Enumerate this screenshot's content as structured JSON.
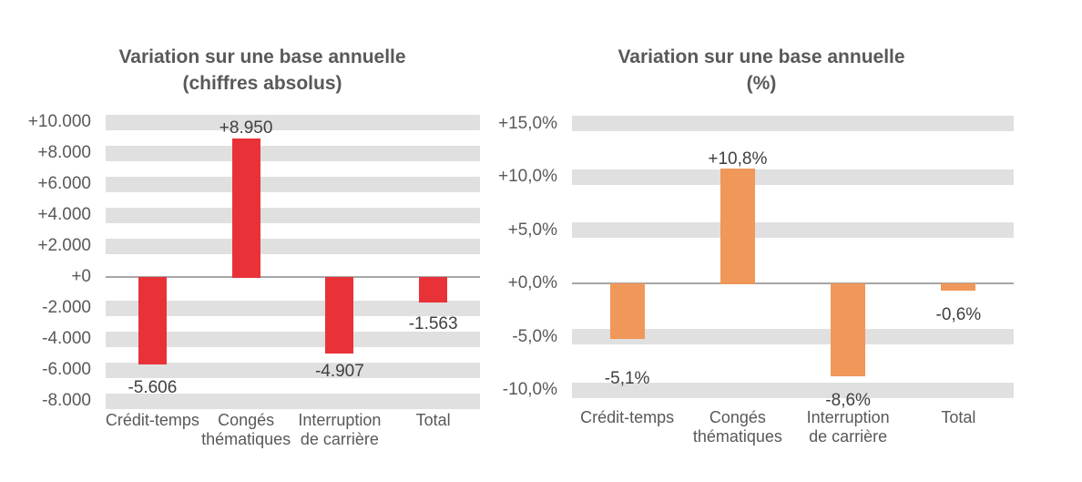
{
  "figure": {
    "background_color": "#ffffff",
    "text_color": "#595959",
    "data_label_color": "#404040",
    "gridline_band_color": "#e0e0e0",
    "axis_line_color": "#a6a6a6"
  },
  "chart_data": [
    {
      "type": "bar",
      "title": "Variation sur une base annuelle (chiffres absolus)",
      "title_lines": [
        "Variation sur une base annuelle",
        "(chiffres absolus)"
      ],
      "categories": [
        "Crédit-temps",
        "Congés thématiques",
        "Interruption de carrière",
        "Total"
      ],
      "category_lines": [
        [
          "Crédit-temps"
        ],
        [
          "Congés",
          "thématiques"
        ],
        [
          "Interruption",
          "de carrière"
        ],
        [
          "Total"
        ]
      ],
      "values": [
        -5606,
        8950,
        -4907,
        -1563
      ],
      "data_labels": [
        "-5.606",
        "+8.950",
        "-4.907",
        "-1.563"
      ],
      "bar_color": "#e93237",
      "ylim": [
        -8000,
        10000
      ],
      "ytick_interval": 2000,
      "yticks": [
        {
          "label": "+10.000",
          "value": 10000
        },
        {
          "label": "+8.000",
          "value": 8000
        },
        {
          "label": "+6.000",
          "value": 6000
        },
        {
          "label": "+4.000",
          "value": 4000
        },
        {
          "label": "+2.000",
          "value": 2000
        },
        {
          "label": "+0",
          "value": 0
        },
        {
          "label": "-2.000",
          "value": -2000
        },
        {
          "label": "-4.000",
          "value": -4000
        },
        {
          "label": "-6.000",
          "value": -6000
        },
        {
          "label": "-8.000",
          "value": -8000
        }
      ],
      "grid": "horizontal-bands",
      "legend": "none"
    },
    {
      "type": "bar",
      "title": "Variation sur une base annuelle (%)",
      "title_lines": [
        "Variation sur une base annuelle",
        "(%)"
      ],
      "categories": [
        "Crédit-temps",
        "Congés thématiques",
        "Interruption de carrière",
        "Total"
      ],
      "category_lines": [
        [
          "Crédit-temps"
        ],
        [
          "Congés",
          "thématiques"
        ],
        [
          "Interruption",
          "de carrière"
        ],
        [
          "Total"
        ]
      ],
      "values": [
        -5.1,
        10.8,
        -8.6,
        -0.6
      ],
      "data_labels": [
        "-5,1%",
        "+10,8%",
        "-8,6%",
        "-0,6%"
      ],
      "bar_color": "#f0975a",
      "ylim": [
        -10,
        15
      ],
      "ytick_interval": 5,
      "yticks": [
        {
          "label": "+15,0%",
          "value": 15
        },
        {
          "label": "+10,0%",
          "value": 10
        },
        {
          "label": "+5,0%",
          "value": 5
        },
        {
          "label": "+0,0%",
          "value": 0
        },
        {
          "label": "-5,0%",
          "value": -5
        },
        {
          "label": "-10,0%",
          "value": -10
        }
      ],
      "grid": "horizontal-bands",
      "legend": "none"
    }
  ]
}
